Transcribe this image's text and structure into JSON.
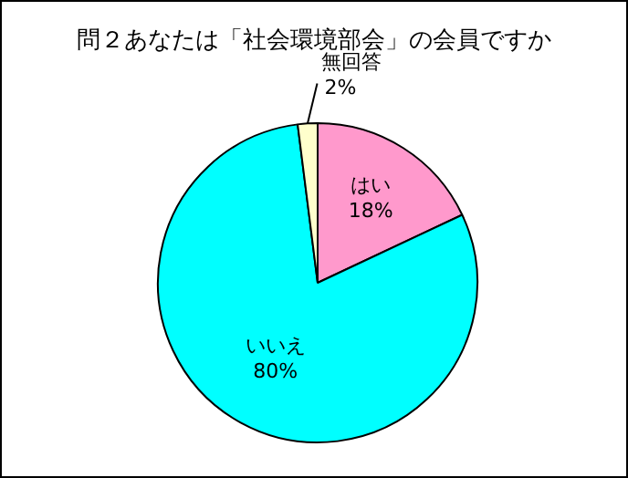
{
  "chart_data": {
    "type": "pie",
    "title": "問２あなたは「社会環境部会」の会員ですか",
    "categories": [
      "はい",
      "いいえ",
      "無回答"
    ],
    "values": [
      18,
      80,
      2
    ],
    "colors": [
      "#ff99cc",
      "#00ffff",
      "#ffffcc"
    ],
    "value_labels": [
      "18%",
      "80%",
      "2%"
    ],
    "legend": false
  }
}
